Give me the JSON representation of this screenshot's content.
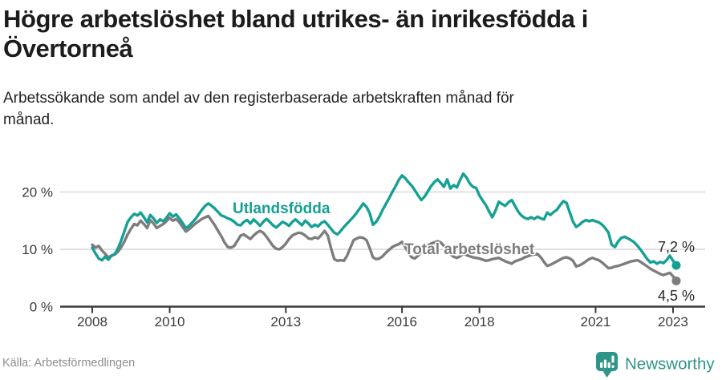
{
  "header": {
    "title_lines": [
      "Högre arbetslöshet bland utrikes- än inrikesfödda i",
      "Övertorneå"
    ],
    "subtitle_lines": [
      "Arbetssökande som andel av den registerbaserade arbetskraften månad för",
      "månad."
    ]
  },
  "footer": {
    "source": "Källa: Arbetsförmedlingen",
    "brand": "Newsworthy"
  },
  "colors": {
    "teal": "#16a094",
    "gray": "#7d7d7d",
    "axis": "#3a3a3a",
    "grid": "#dcdcdc",
    "title_text": "#1c1c1c",
    "brand": "#2f958a"
  },
  "chart_data": {
    "type": "line",
    "title": "Högre arbetslöshet bland utrikes- än inrikesfödda i Övertorneå",
    "subtitle": "Arbetssökande som andel av den registerbaserade arbetskraften månad för månad.",
    "unit": "%",
    "x_unit": "month",
    "x_start": "2008-01",
    "x_end": "2023-02",
    "xticks": [
      2008,
      2010,
      2013,
      2016,
      2018,
      2021,
      2023
    ],
    "yticks": [
      {
        "value": 20,
        "label": "20 %"
      },
      {
        "value": 10,
        "label": "10 %"
      },
      {
        "value": 0,
        "label": "0 %"
      }
    ],
    "ylim": [
      0,
      24
    ],
    "grid": "horizontal",
    "legend_position": "inline-labels",
    "series": [
      {
        "name": "Utlandsfödda",
        "color": "#16a094",
        "end_label": "7,2 %",
        "end_value": 7.2,
        "values": [
          10.3,
          9.3,
          8.4,
          8.1,
          8.7,
          8.2,
          8.9,
          9.2,
          10.2,
          11.6,
          13.2,
          14.8,
          15.6,
          16.2,
          15.9,
          16.4,
          15.6,
          14.7,
          16.0,
          15.4,
          14.6,
          15.2,
          14.9,
          15.5,
          16.3,
          15.7,
          16.1,
          15.4,
          14.6,
          13.7,
          14.1,
          14.7,
          15.3,
          16.1,
          16.9,
          17.6,
          18.0,
          17.6,
          17.1,
          16.5,
          15.9,
          15.7,
          15.4,
          15.2,
          14.8,
          14.3,
          14.2,
          14.8,
          15.1,
          14.5,
          15.2,
          14.7,
          14.1,
          14.8,
          15.3,
          14.8,
          14.2,
          13.8,
          14.3,
          14.8,
          14.5,
          14.1,
          14.8,
          15.2,
          14.7,
          14.2,
          15.0,
          14.5,
          13.9,
          14.3,
          14.0,
          14.6,
          14.9,
          14.3,
          13.6,
          12.9,
          12.6,
          13.2,
          13.9,
          14.5,
          15.1,
          15.7,
          16.4,
          17.2,
          18.0,
          17.4,
          16.3,
          14.3,
          14.8,
          15.7,
          16.9,
          17.9,
          18.9,
          20.0,
          21.0,
          22.1,
          22.9,
          22.4,
          21.7,
          21.1,
          20.3,
          19.4,
          18.6,
          19.2,
          20.1,
          21.0,
          21.7,
          22.2,
          21.6,
          20.9,
          22.2,
          20.6,
          21.2,
          20.8,
          22.1,
          23.2,
          22.5,
          21.5,
          20.9,
          20.7,
          19.4,
          18.5,
          17.7,
          16.6,
          15.6,
          16.8,
          18.3,
          17.9,
          17.6,
          18.2,
          18.6,
          17.6,
          16.6,
          15.9,
          15.5,
          15.3,
          15.6,
          15.3,
          15.7,
          15.4,
          15.2,
          16.4,
          16.0,
          16.5,
          16.9,
          17.7,
          18.4,
          18.1,
          16.4,
          14.8,
          13.9,
          14.3,
          14.8,
          15.1,
          14.9,
          15.1,
          14.9,
          14.7,
          14.3,
          13.7,
          12.9,
          10.8,
          10.4,
          11.4,
          12.0,
          12.2,
          11.9,
          11.6,
          11.2,
          10.6,
          9.9,
          9.1,
          8.3,
          7.7,
          7.9,
          7.5,
          7.8,
          7.6,
          8.1,
          8.9,
          8.0,
          7.2
        ]
      },
      {
        "name": "Total arbetslöshet",
        "color": "#7d7d7d",
        "end_label": "4,5 %",
        "end_value": 4.5,
        "values": [
          10.8,
          10.3,
          10.6,
          9.8,
          9.2,
          8.6,
          8.9,
          9.1,
          9.6,
          10.4,
          11.4,
          12.6,
          13.6,
          14.4,
          14.2,
          15.0,
          14.4,
          13.7,
          15.1,
          14.5,
          13.7,
          14.1,
          14.4,
          14.9,
          15.5,
          15.0,
          15.3,
          14.7,
          13.9,
          13.1,
          13.5,
          14.0,
          14.5,
          14.9,
          15.3,
          15.6,
          15.8,
          15.0,
          14.2,
          13.2,
          12.3,
          11.2,
          10.4,
          10.3,
          10.6,
          11.5,
          12.4,
          12.6,
          12.2,
          11.8,
          12.4,
          12.9,
          13.2,
          12.9,
          12.2,
          11.4,
          10.6,
          10.1,
          10.0,
          10.4,
          11.0,
          11.8,
          12.4,
          12.7,
          12.9,
          12.8,
          12.4,
          11.9,
          11.8,
          12.1,
          11.9,
          12.5,
          13.2,
          12.4,
          10.2,
          8.3,
          8.0,
          8.1,
          8.0,
          8.9,
          10.3,
          11.6,
          11.9,
          12.1,
          12.0,
          11.6,
          10.2,
          8.6,
          8.3,
          8.4,
          8.8,
          9.4,
          9.9,
          10.4,
          10.7,
          10.9,
          11.3,
          10.4,
          9.4,
          8.6,
          8.4,
          8.9,
          9.6,
          10.2,
          10.7,
          11.0,
          11.2,
          11.4,
          11.2,
          10.6,
          9.9,
          9.2,
          8.7,
          8.5,
          8.8,
          9.2,
          9.0,
          8.8,
          8.6,
          8.5,
          8.4,
          8.2,
          8.0,
          8.1,
          8.3,
          8.4,
          8.5,
          8.2,
          7.9,
          7.7,
          7.5,
          7.9,
          8.1,
          8.3,
          8.6,
          8.8,
          9.0,
          9.1,
          9.2,
          8.6,
          7.8,
          7.1,
          7.3,
          7.6,
          7.9,
          8.2,
          8.5,
          8.6,
          8.4,
          8.0,
          7.0,
          7.2,
          7.5,
          7.9,
          8.3,
          8.5,
          8.3,
          8.1,
          7.7,
          7.2,
          6.7,
          6.8,
          7.0,
          7.1,
          7.3,
          7.5,
          7.7,
          7.9,
          8.0,
          8.1,
          7.8,
          7.4,
          7.0,
          6.6,
          6.3,
          6.0,
          5.7,
          5.5,
          5.7,
          5.9,
          5.3,
          4.5
        ]
      }
    ]
  }
}
